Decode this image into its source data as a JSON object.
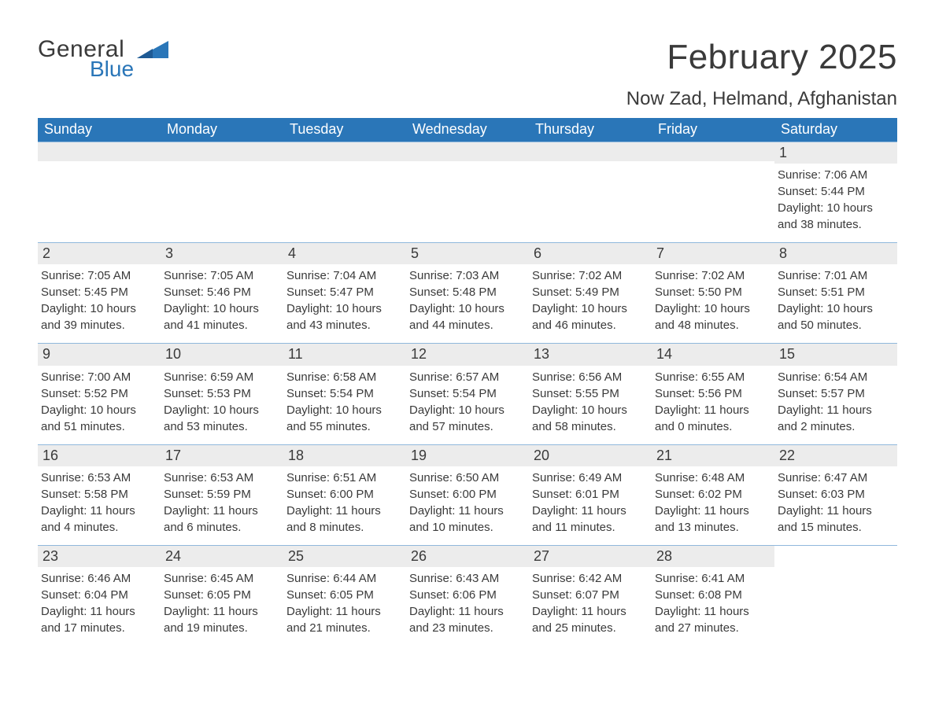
{
  "logo": {
    "text_general": "General",
    "text_blue": "Blue"
  },
  "title": "February 2025",
  "location": "Now Zad, Helmand, Afghanistan",
  "colors": {
    "header_bg": "#2a76b8",
    "header_text": "#ffffff",
    "daynum_bg": "#ececec",
    "row_border": "#90b8dc",
    "text": "#3a3a3a",
    "logo_blue": "#2a76b8"
  },
  "typography": {
    "body_font": "Arial",
    "title_fontsize": 44,
    "location_fontsize": 24,
    "weekday_fontsize": 18,
    "daynum_fontsize": 18,
    "dayinfo_fontsize": 15
  },
  "weekdays": [
    "Sunday",
    "Monday",
    "Tuesday",
    "Wednesday",
    "Thursday",
    "Friday",
    "Saturday"
  ],
  "weeks": [
    [
      null,
      null,
      null,
      null,
      null,
      null,
      {
        "n": "1",
        "sunrise": "Sunrise: 7:06 AM",
        "sunset": "Sunset: 5:44 PM",
        "daylight": "Daylight: 10 hours and 38 minutes."
      }
    ],
    [
      {
        "n": "2",
        "sunrise": "Sunrise: 7:05 AM",
        "sunset": "Sunset: 5:45 PM",
        "daylight": "Daylight: 10 hours and 39 minutes."
      },
      {
        "n": "3",
        "sunrise": "Sunrise: 7:05 AM",
        "sunset": "Sunset: 5:46 PM",
        "daylight": "Daylight: 10 hours and 41 minutes."
      },
      {
        "n": "4",
        "sunrise": "Sunrise: 7:04 AM",
        "sunset": "Sunset: 5:47 PM",
        "daylight": "Daylight: 10 hours and 43 minutes."
      },
      {
        "n": "5",
        "sunrise": "Sunrise: 7:03 AM",
        "sunset": "Sunset: 5:48 PM",
        "daylight": "Daylight: 10 hours and 44 minutes."
      },
      {
        "n": "6",
        "sunrise": "Sunrise: 7:02 AM",
        "sunset": "Sunset: 5:49 PM",
        "daylight": "Daylight: 10 hours and 46 minutes."
      },
      {
        "n": "7",
        "sunrise": "Sunrise: 7:02 AM",
        "sunset": "Sunset: 5:50 PM",
        "daylight": "Daylight: 10 hours and 48 minutes."
      },
      {
        "n": "8",
        "sunrise": "Sunrise: 7:01 AM",
        "sunset": "Sunset: 5:51 PM",
        "daylight": "Daylight: 10 hours and 50 minutes."
      }
    ],
    [
      {
        "n": "9",
        "sunrise": "Sunrise: 7:00 AM",
        "sunset": "Sunset: 5:52 PM",
        "daylight": "Daylight: 10 hours and 51 minutes."
      },
      {
        "n": "10",
        "sunrise": "Sunrise: 6:59 AM",
        "sunset": "Sunset: 5:53 PM",
        "daylight": "Daylight: 10 hours and 53 minutes."
      },
      {
        "n": "11",
        "sunrise": "Sunrise: 6:58 AM",
        "sunset": "Sunset: 5:54 PM",
        "daylight": "Daylight: 10 hours and 55 minutes."
      },
      {
        "n": "12",
        "sunrise": "Sunrise: 6:57 AM",
        "sunset": "Sunset: 5:54 PM",
        "daylight": "Daylight: 10 hours and 57 minutes."
      },
      {
        "n": "13",
        "sunrise": "Sunrise: 6:56 AM",
        "sunset": "Sunset: 5:55 PM",
        "daylight": "Daylight: 10 hours and 58 minutes."
      },
      {
        "n": "14",
        "sunrise": "Sunrise: 6:55 AM",
        "sunset": "Sunset: 5:56 PM",
        "daylight": "Daylight: 11 hours and 0 minutes."
      },
      {
        "n": "15",
        "sunrise": "Sunrise: 6:54 AM",
        "sunset": "Sunset: 5:57 PM",
        "daylight": "Daylight: 11 hours and 2 minutes."
      }
    ],
    [
      {
        "n": "16",
        "sunrise": "Sunrise: 6:53 AM",
        "sunset": "Sunset: 5:58 PM",
        "daylight": "Daylight: 11 hours and 4 minutes."
      },
      {
        "n": "17",
        "sunrise": "Sunrise: 6:53 AM",
        "sunset": "Sunset: 5:59 PM",
        "daylight": "Daylight: 11 hours and 6 minutes."
      },
      {
        "n": "18",
        "sunrise": "Sunrise: 6:51 AM",
        "sunset": "Sunset: 6:00 PM",
        "daylight": "Daylight: 11 hours and 8 minutes."
      },
      {
        "n": "19",
        "sunrise": "Sunrise: 6:50 AM",
        "sunset": "Sunset: 6:00 PM",
        "daylight": "Daylight: 11 hours and 10 minutes."
      },
      {
        "n": "20",
        "sunrise": "Sunrise: 6:49 AM",
        "sunset": "Sunset: 6:01 PM",
        "daylight": "Daylight: 11 hours and 11 minutes."
      },
      {
        "n": "21",
        "sunrise": "Sunrise: 6:48 AM",
        "sunset": "Sunset: 6:02 PM",
        "daylight": "Daylight: 11 hours and 13 minutes."
      },
      {
        "n": "22",
        "sunrise": "Sunrise: 6:47 AM",
        "sunset": "Sunset: 6:03 PM",
        "daylight": "Daylight: 11 hours and 15 minutes."
      }
    ],
    [
      {
        "n": "23",
        "sunrise": "Sunrise: 6:46 AM",
        "sunset": "Sunset: 6:04 PM",
        "daylight": "Daylight: 11 hours and 17 minutes."
      },
      {
        "n": "24",
        "sunrise": "Sunrise: 6:45 AM",
        "sunset": "Sunset: 6:05 PM",
        "daylight": "Daylight: 11 hours and 19 minutes."
      },
      {
        "n": "25",
        "sunrise": "Sunrise: 6:44 AM",
        "sunset": "Sunset: 6:05 PM",
        "daylight": "Daylight: 11 hours and 21 minutes."
      },
      {
        "n": "26",
        "sunrise": "Sunrise: 6:43 AM",
        "sunset": "Sunset: 6:06 PM",
        "daylight": "Daylight: 11 hours and 23 minutes."
      },
      {
        "n": "27",
        "sunrise": "Sunrise: 6:42 AM",
        "sunset": "Sunset: 6:07 PM",
        "daylight": "Daylight: 11 hours and 25 minutes."
      },
      {
        "n": "28",
        "sunrise": "Sunrise: 6:41 AM",
        "sunset": "Sunset: 6:08 PM",
        "daylight": "Daylight: 11 hours and 27 minutes."
      },
      null
    ]
  ]
}
